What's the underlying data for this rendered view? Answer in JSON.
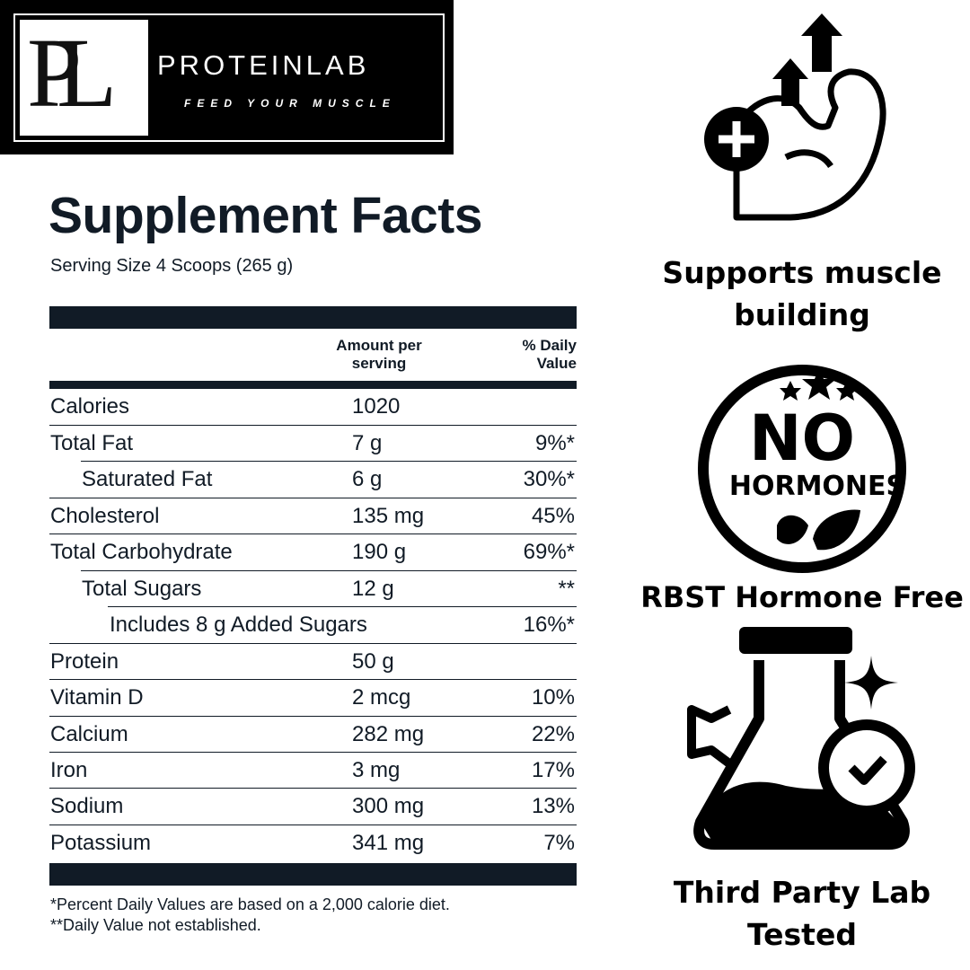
{
  "brand": {
    "monogram": "PL",
    "name": "PROTEINLAB",
    "tagline": "FEED YOUR MUSCLE"
  },
  "facts": {
    "title": "Supplement Facts",
    "serving": "Serving Size 4 Scoops (265 g)",
    "header": {
      "amount": [
        "Amount per",
        "serving"
      ],
      "daily_value": [
        "% Daily",
        "Value"
      ]
    },
    "rows": [
      {
        "name": "Calories",
        "amount": "1020"
      },
      {
        "name": "Total Fat",
        "amount": "7 g",
        "dv": "9%*"
      },
      {
        "name": "Saturated Fat",
        "amount": "6 g",
        "dv": "30%*"
      },
      {
        "name": "Cholesterol",
        "amount": "135 mg",
        "dv": "45%"
      },
      {
        "name": "Total Carbohydrate",
        "amount": "190 g",
        "dv": "69%*"
      },
      {
        "name": "Total Sugars",
        "amount": "12 g",
        "dv": "**"
      },
      {
        "name": "Includes 8 g Added Sugars",
        "dv": "16%*"
      },
      {
        "name": "Protein",
        "amount": "50 g"
      },
      {
        "name": "Vitamin D",
        "amount": "2 mcg",
        "dv": "10%"
      },
      {
        "name": "Calcium",
        "amount": "282 mg",
        "dv": "22%"
      },
      {
        "name": "Iron",
        "amount": "3 mg",
        "dv": "17%"
      },
      {
        "name": "Sodium",
        "amount": "300 mg",
        "dv": "13%"
      },
      {
        "name": "Potassium",
        "amount": "341 mg",
        "dv": "7%"
      }
    ],
    "footnotes": [
      "*Percent Daily Values are based on a 2,000 calorie diet.",
      "**Daily Value not established."
    ]
  },
  "features": [
    {
      "label": "Supports muscle building"
    },
    {
      "label": "RBST Hormone Free",
      "badge": [
        "NO",
        "HORMONES"
      ]
    },
    {
      "label": "Third Party Lab Tested"
    }
  ]
}
